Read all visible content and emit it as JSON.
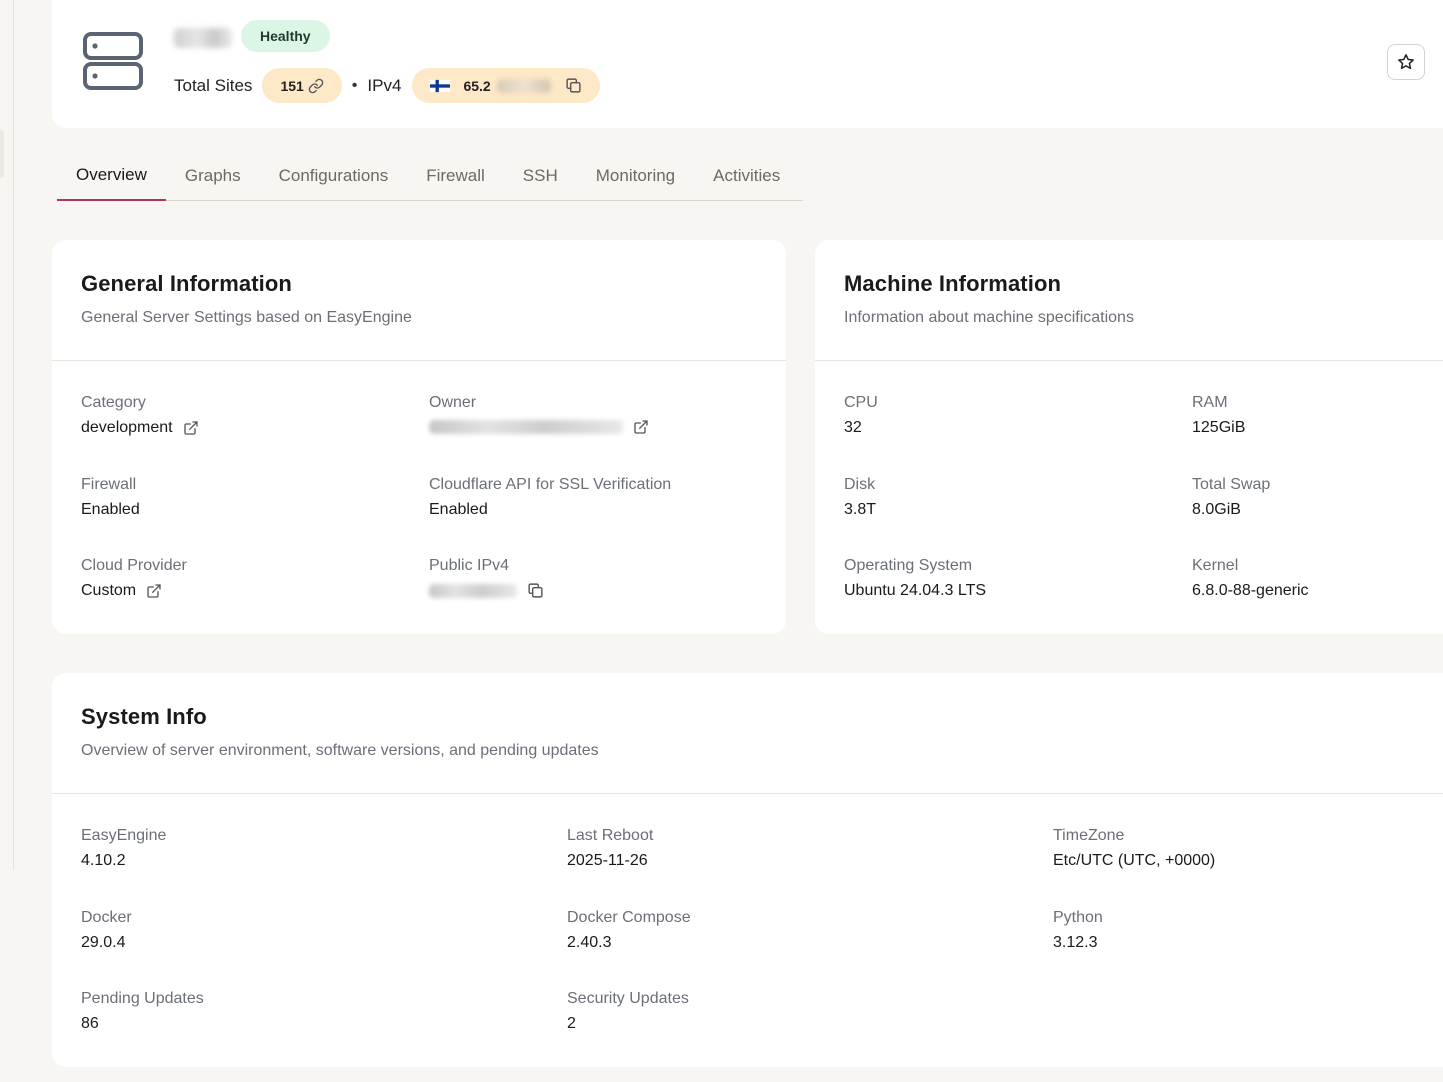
{
  "header": {
    "health_status": "Healthy",
    "total_sites_label": "Total Sites",
    "total_sites_value": "151",
    "ip_type_label": "IPv4",
    "ip_visible_prefix": "65.2",
    "server_icon": "server-icon",
    "star_icon": "star-icon",
    "copy_icon": "copy-icon",
    "link_icon": "link-icon",
    "flag_icon": "finland-flag-icon"
  },
  "tabs": [
    {
      "label": "Overview",
      "active": true
    },
    {
      "label": "Graphs"
    },
    {
      "label": "Configurations"
    },
    {
      "label": "Firewall"
    },
    {
      "label": "SSH"
    },
    {
      "label": "Monitoring"
    },
    {
      "label": "Activities"
    }
  ],
  "general": {
    "title": "General Information",
    "subtitle": "General Server Settings based on EasyEngine",
    "category_label": "Category",
    "category_value": "development",
    "owner_label": "Owner",
    "firewall_label": "Firewall",
    "firewall_value": "Enabled",
    "cloudflare_label": "Cloudflare API for SSL Verification",
    "cloudflare_value": "Enabled",
    "provider_label": "Cloud Provider",
    "provider_value": "Custom",
    "public_ip_label": "Public IPv4"
  },
  "machine": {
    "title": "Machine Information",
    "subtitle": "Information about machine specifications",
    "cpu_label": "CPU",
    "cpu_value": "32",
    "ram_label": "RAM",
    "ram_value": "125GiB",
    "disk_label": "Disk",
    "disk_value": "3.8T",
    "swap_label": "Total Swap",
    "swap_value": "8.0GiB",
    "os_label": "Operating System",
    "os_value": "Ubuntu 24.04.3 LTS",
    "kernel_label": "Kernel",
    "kernel_value": "6.8.0-88-generic"
  },
  "system": {
    "title": "System Info",
    "subtitle": "Overview of server environment, software versions, and pending updates",
    "easyengine_label": "EasyEngine",
    "easyengine_value": "4.10.2",
    "reboot_label": "Last Reboot",
    "reboot_value": "2025-11-26",
    "timezone_label": "TimeZone",
    "timezone_value": "Etc/UTC (UTC, +0000)",
    "docker_label": "Docker",
    "docker_value": "29.0.4",
    "compose_label": "Docker Compose",
    "compose_value": "2.40.3",
    "python_label": "Python",
    "python_value": "3.12.3",
    "pending_label": "Pending Updates",
    "pending_value": "86",
    "security_label": "Security Updates",
    "security_value": "2"
  },
  "colors": {
    "healthy_bg": "#dcf6e6",
    "pill_bg": "#fde8c7",
    "active_tab_underline": "#b3325a",
    "page_bg": "#f7f6f2"
  }
}
